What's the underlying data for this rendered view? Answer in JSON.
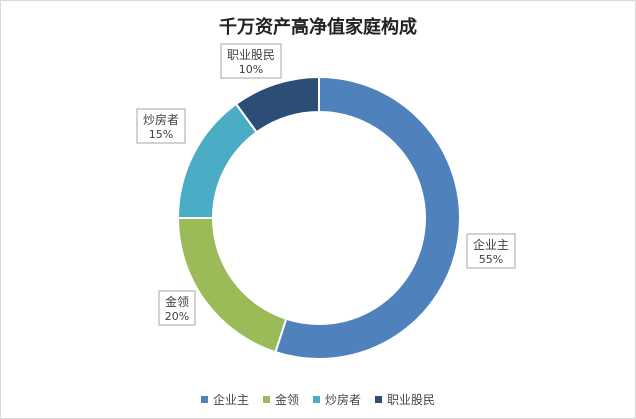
{
  "chart_data": {
    "type": "pie",
    "variant": "donut",
    "title": "千万资产高净值家庭构成",
    "categories": [
      "企业主",
      "金领",
      "炒房者",
      "职业股民"
    ],
    "values": [
      55,
      20,
      15,
      10
    ],
    "value_labels": [
      "55%",
      "20%",
      "15%",
      "10%"
    ],
    "colors": [
      "#4f81bd",
      "#9bbb59",
      "#4bacc6",
      "#2c4d75"
    ],
    "legend_position": "bottom"
  }
}
